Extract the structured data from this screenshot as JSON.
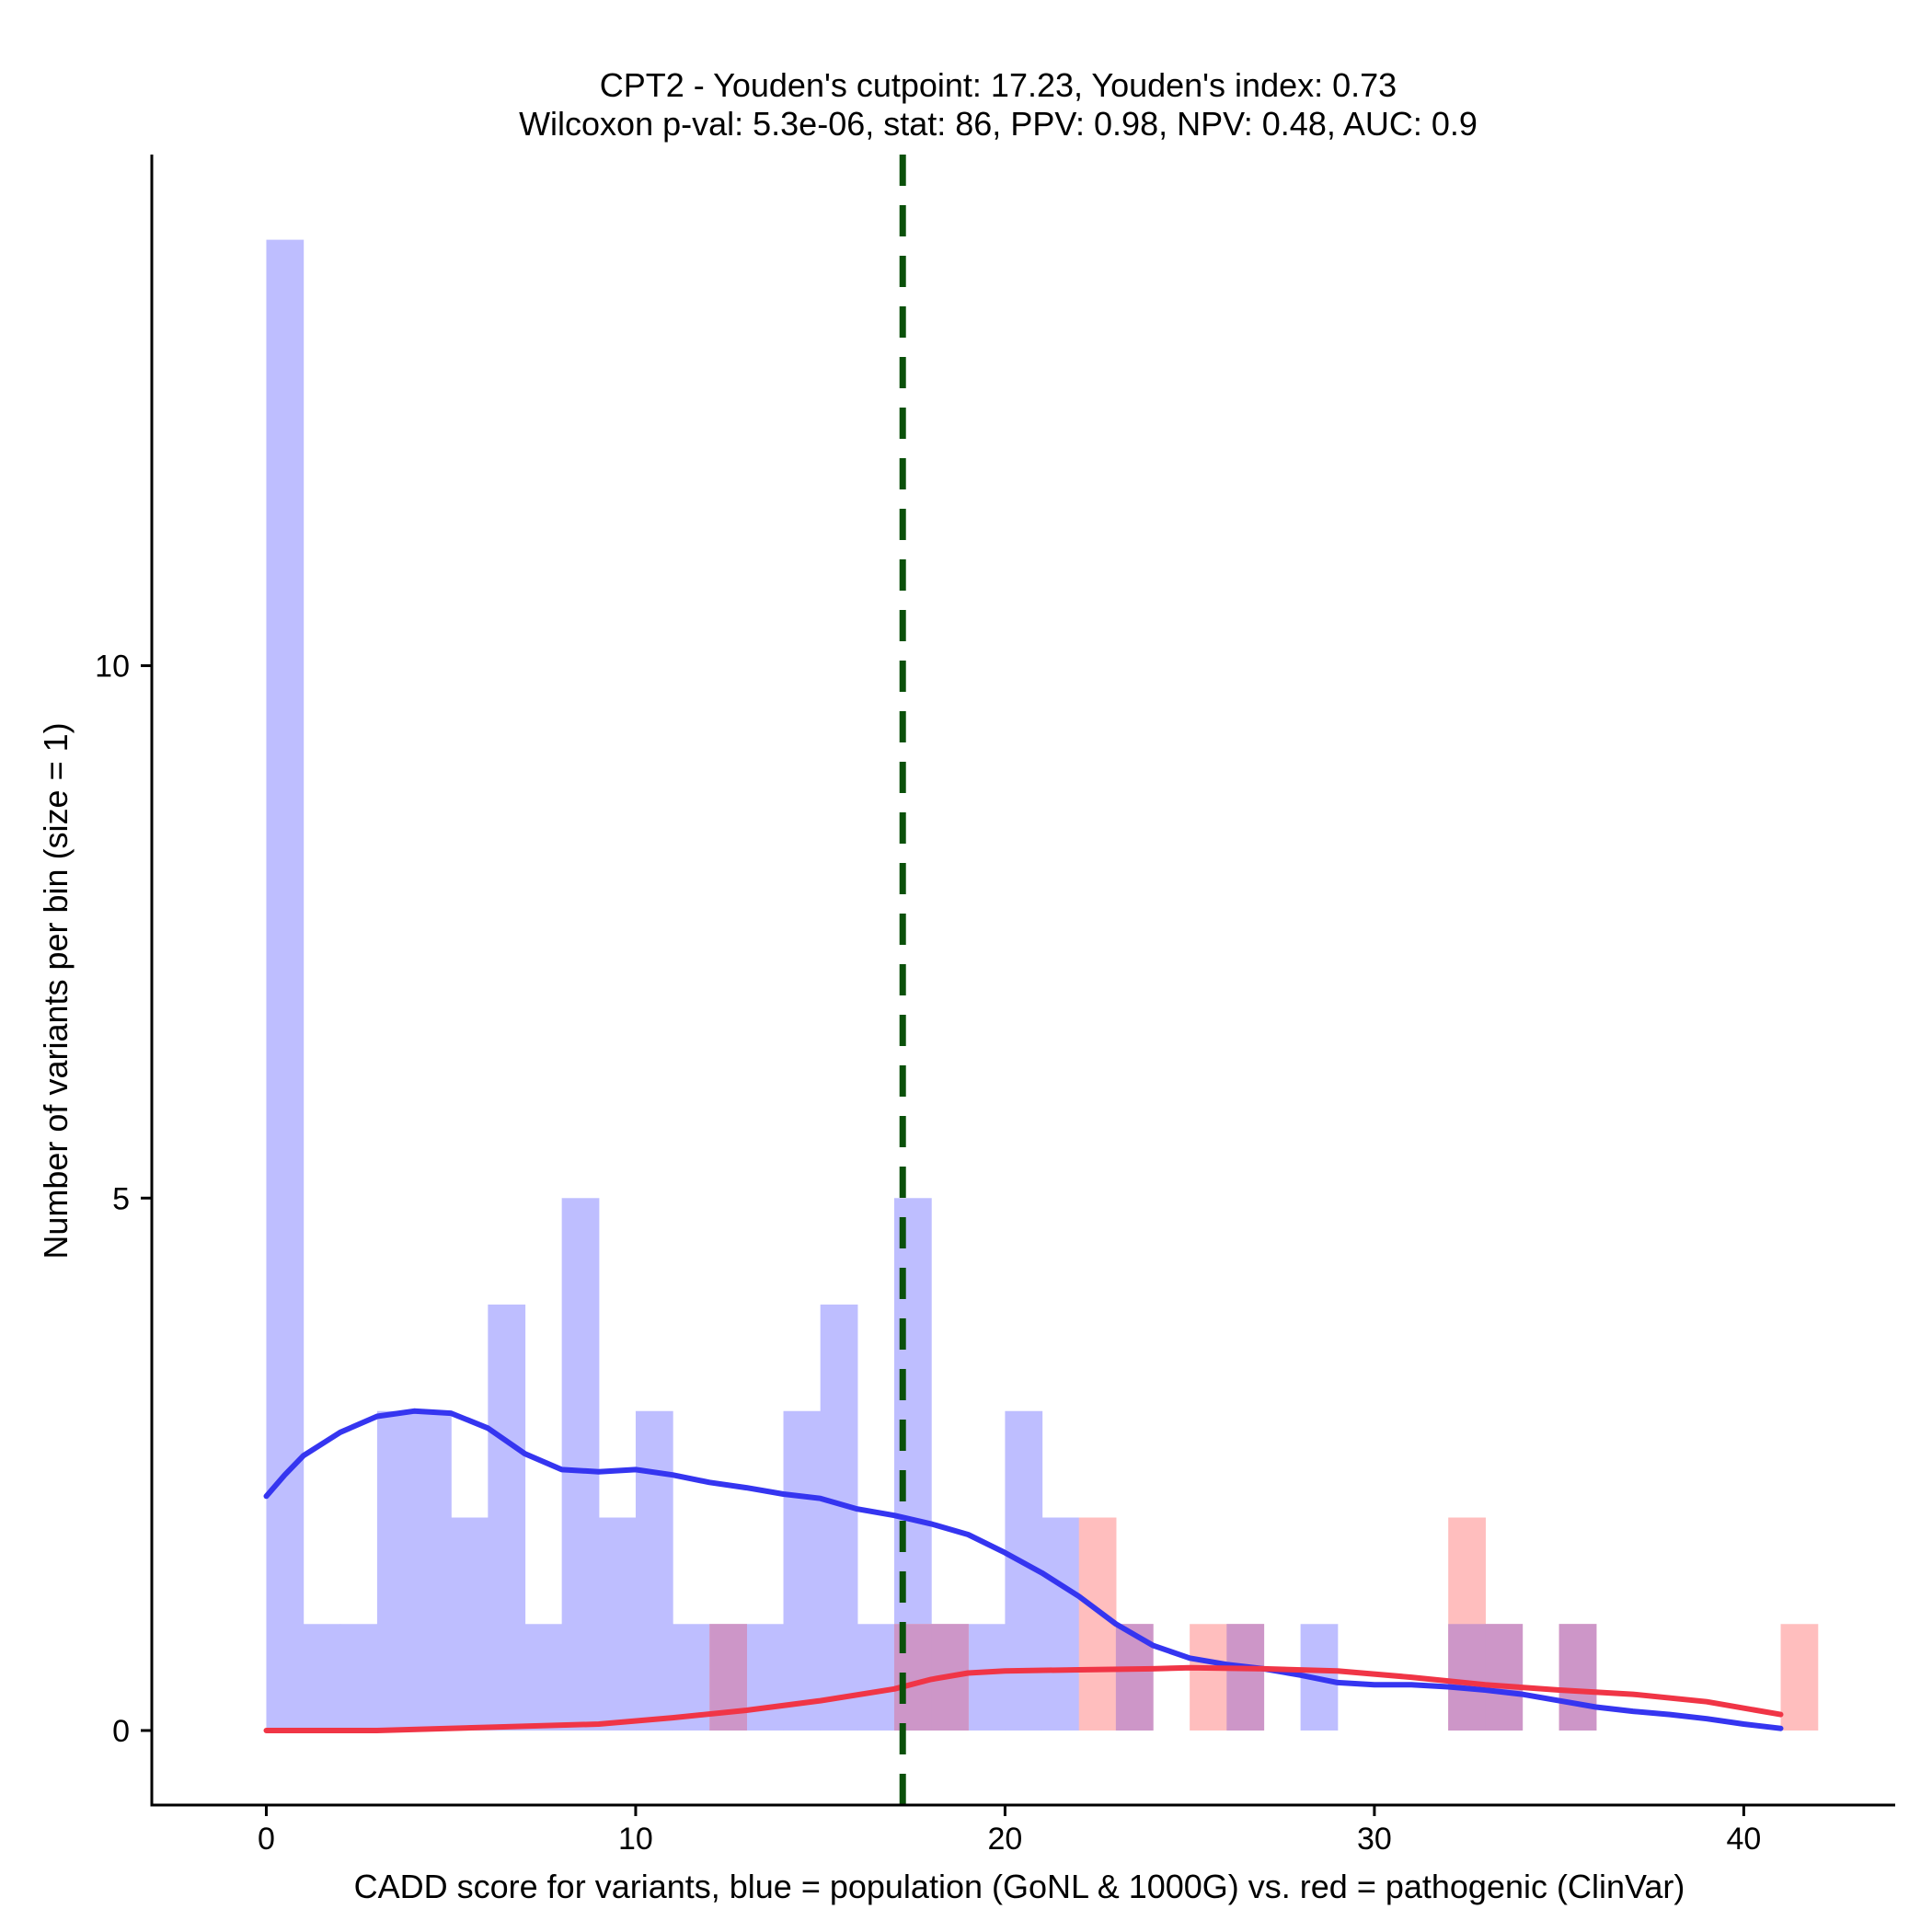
{
  "chart_data": {
    "type": "histogram",
    "title": "CPT2 - Youden's cutpoint: 17.23, Youden's index: 0.73",
    "subtitle": "Wilcoxon p-val: 5.3e-06, stat: 86, PPV: 0.98, NPV: 0.48, AUC: 0.9",
    "xlabel": "CADD score for variants, blue = population (GoNL & 1000G) vs. red = pathogenic (ClinVar)",
    "ylabel": "Number of variants per bin (size = 1)",
    "xlim": [
      -3.1,
      44.1
    ],
    "ylim": [
      -0.7,
      14.8
    ],
    "x_ticks": [
      0,
      10,
      20,
      30,
      40
    ],
    "y_ticks": [
      0,
      5,
      10
    ],
    "bin_width": 1,
    "cutpoint": 17.23,
    "colors": {
      "population_bar": "#bebeff",
      "pathogenic_bar": "#ffbebe",
      "overlap_bar": "#cd96c8",
      "population_curve": "#3535f0",
      "pathogenic_curve": "#f03546",
      "cutpoint_line": "#0a500a"
    },
    "series": [
      {
        "name": "population (GoNL & 1000G)",
        "bins": [
          {
            "x": 0,
            "count": 14
          },
          {
            "x": 1,
            "count": 1
          },
          {
            "x": 2,
            "count": 1
          },
          {
            "x": 3,
            "count": 3
          },
          {
            "x": 4,
            "count": 3
          },
          {
            "x": 5,
            "count": 2
          },
          {
            "x": 6,
            "count": 4
          },
          {
            "x": 7,
            "count": 1
          },
          {
            "x": 8,
            "count": 5
          },
          {
            "x": 9,
            "count": 2
          },
          {
            "x": 10,
            "count": 3
          },
          {
            "x": 11,
            "count": 1
          },
          {
            "x": 12,
            "count": 1
          },
          {
            "x": 13,
            "count": 1
          },
          {
            "x": 14,
            "count": 3
          },
          {
            "x": 15,
            "count": 4
          },
          {
            "x": 16,
            "count": 1
          },
          {
            "x": 17,
            "count": 5
          },
          {
            "x": 18,
            "count": 1
          },
          {
            "x": 19,
            "count": 1
          },
          {
            "x": 20,
            "count": 3
          },
          {
            "x": 21,
            "count": 2
          },
          {
            "x": 23,
            "count": 1
          },
          {
            "x": 26,
            "count": 1
          },
          {
            "x": 28,
            "count": 1
          },
          {
            "x": 32,
            "count": 1
          },
          {
            "x": 33,
            "count": 1
          },
          {
            "x": 35,
            "count": 1
          }
        ],
        "density_curve": [
          [
            0,
            2.2
          ],
          [
            0.5,
            2.4
          ],
          [
            1,
            2.58
          ],
          [
            2,
            2.8
          ],
          [
            3,
            2.95
          ],
          [
            4,
            3.0
          ],
          [
            5,
            2.98
          ],
          [
            6,
            2.84
          ],
          [
            7,
            2.6
          ],
          [
            8,
            2.45
          ],
          [
            9,
            2.43
          ],
          [
            10,
            2.45
          ],
          [
            11,
            2.4
          ],
          [
            12,
            2.33
          ],
          [
            13,
            2.28
          ],
          [
            14,
            2.22
          ],
          [
            15,
            2.18
          ],
          [
            16,
            2.08
          ],
          [
            17,
            2.02
          ],
          [
            18,
            1.94
          ],
          [
            19,
            1.84
          ],
          [
            20,
            1.67
          ],
          [
            21,
            1.48
          ],
          [
            22,
            1.26
          ],
          [
            23,
            1.0
          ],
          [
            24,
            0.8
          ],
          [
            25,
            0.68
          ],
          [
            26,
            0.62
          ],
          [
            27,
            0.58
          ],
          [
            28,
            0.52
          ],
          [
            29,
            0.45
          ],
          [
            30,
            0.43
          ],
          [
            31,
            0.43
          ],
          [
            32,
            0.41
          ],
          [
            33,
            0.38
          ],
          [
            34,
            0.34
          ],
          [
            35,
            0.28
          ],
          [
            36,
            0.22
          ],
          [
            37,
            0.18
          ],
          [
            38,
            0.15
          ],
          [
            39,
            0.11
          ],
          [
            40,
            0.06
          ],
          [
            41,
            0.02
          ]
        ]
      },
      {
        "name": "pathogenic (ClinVar)",
        "bins": [
          {
            "x": 12,
            "count": 1
          },
          {
            "x": 17,
            "count": 1
          },
          {
            "x": 18,
            "count": 1
          },
          {
            "x": 22,
            "count": 2
          },
          {
            "x": 23,
            "count": 1
          },
          {
            "x": 25,
            "count": 1
          },
          {
            "x": 26,
            "count": 1
          },
          {
            "x": 32,
            "count": 2
          },
          {
            "x": 33,
            "count": 1
          },
          {
            "x": 35,
            "count": 1
          },
          {
            "x": 41,
            "count": 1
          }
        ],
        "density_curve": [
          [
            0,
            0
          ],
          [
            3,
            0
          ],
          [
            6,
            0.03
          ],
          [
            9,
            0.06
          ],
          [
            11,
            0.12
          ],
          [
            13,
            0.19
          ],
          [
            15,
            0.28
          ],
          [
            17,
            0.39
          ],
          [
            18,
            0.48
          ],
          [
            19,
            0.54
          ],
          [
            20,
            0.56
          ],
          [
            22,
            0.57
          ],
          [
            24,
            0.58
          ],
          [
            25,
            0.59
          ],
          [
            27,
            0.58
          ],
          [
            29,
            0.56
          ],
          [
            31,
            0.5
          ],
          [
            33,
            0.43
          ],
          [
            35,
            0.38
          ],
          [
            37,
            0.34
          ],
          [
            39,
            0.27
          ],
          [
            41,
            0.15
          ]
        ]
      }
    ]
  }
}
